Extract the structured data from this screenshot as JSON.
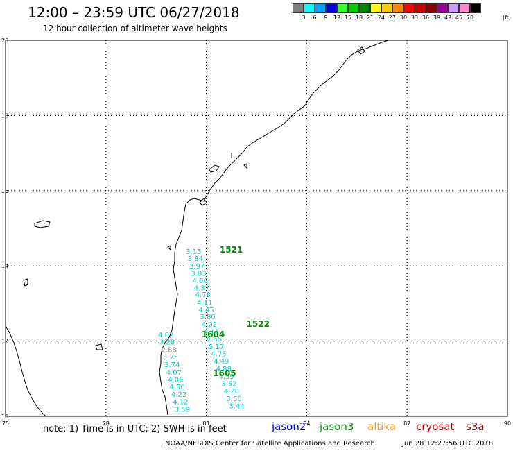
{
  "title": "12:00 – 23:59 UTC 06/27/2018",
  "subtitle": "12 hour collection of altimeter wave heights",
  "legend": {
    "unit": "(ft)",
    "colors": [
      {
        "label": "3",
        "color": "#7f7f7f"
      },
      {
        "label": "6",
        "color": "#00ffff"
      },
      {
        "label": "9",
        "color": "#00a0ff"
      },
      {
        "label": "12",
        "color": "#0000e0"
      },
      {
        "label": "15",
        "color": "#33ff33"
      },
      {
        "label": "18",
        "color": "#00cc00"
      },
      {
        "label": "21",
        "color": "#008800"
      },
      {
        "label": "24",
        "color": "#ffff00"
      },
      {
        "label": "27",
        "color": "#ffcc00"
      },
      {
        "label": "30",
        "color": "#ff8800"
      },
      {
        "label": "33",
        "color": "#ff0000"
      },
      {
        "label": "36",
        "color": "#cc0000"
      },
      {
        "label": "39",
        "color": "#880000"
      },
      {
        "label": "42",
        "color": "#990099"
      },
      {
        "label": "45",
        "color": "#cc99ff"
      },
      {
        "label": "70",
        "color": "#ff88cc"
      },
      {
        "label": "",
        "color": "#000000"
      }
    ]
  },
  "axes": {
    "lon_ticks": [
      "75",
      "78",
      "81",
      "84",
      "87",
      "90"
    ],
    "lat_ticks": [
      "10",
      "12",
      "14",
      "16",
      "18",
      "20"
    ]
  },
  "note": "note: 1) Time is in UTC; 2) SWH is in feet",
  "satellites": [
    {
      "name": "jason2",
      "color": "#0000cc"
    },
    {
      "name": "jason3",
      "color": "#009900"
    },
    {
      "name": "altika",
      "color": "#ff9900"
    },
    {
      "name": "cryosat",
      "color": "#cc0000"
    },
    {
      "name": "s3a",
      "color": "#880000"
    }
  ],
  "footer": {
    "credit": "NOAA/NESDIS Center for Satellite Applications and Research",
    "timestamp": "Jun 28 12:27:56 UTC 2018"
  },
  "track_times": [
    {
      "label": "1521",
      "lon": 81.4,
      "lat": 14.35
    },
    {
      "label": "1522",
      "lon": 82.2,
      "lat": 12.38
    },
    {
      "label": "1604",
      "lon": 80.86,
      "lat": 12.1
    },
    {
      "label": "1605",
      "lon": 81.2,
      "lat": 11.07
    }
  ],
  "wave_heights": [
    {
      "value": "3.15",
      "lon": 80.39,
      "lat": 14.32
    },
    {
      "value": "3.84",
      "lon": 80.44,
      "lat": 14.13
    },
    {
      "value": "3.97",
      "lon": 80.49,
      "lat": 13.93
    },
    {
      "value": "3.83",
      "lon": 80.54,
      "lat": 13.74
    },
    {
      "value": "4.06",
      "lon": 80.58,
      "lat": 13.54
    },
    {
      "value": "4.37",
      "lon": 80.63,
      "lat": 13.35
    },
    {
      "value": "4.78",
      "lon": 80.67,
      "lat": 13.17
    },
    {
      "value": "4.11",
      "lon": 80.72,
      "lat": 12.96
    },
    {
      "value": "4.45",
      "lon": 80.77,
      "lat": 12.77
    },
    {
      "value": "3.80",
      "lon": 80.81,
      "lat": 12.58
    },
    {
      "value": "4.02",
      "lon": 80.86,
      "lat": 12.38
    },
    {
      "value": "4.11",
      "lon": 80.92,
      "lat": 12.19
    },
    {
      "value": "4.66",
      "lon": 81.0,
      "lat": 11.99
    },
    {
      "value": "5.17",
      "lon": 81.07,
      "lat": 11.79
    },
    {
      "value": "4.75",
      "lon": 81.14,
      "lat": 11.6
    },
    {
      "value": "4.49",
      "lon": 81.22,
      "lat": 11.4
    },
    {
      "value": "4.88",
      "lon": 81.29,
      "lat": 11.2
    },
    {
      "value": "4.59",
      "lon": 81.37,
      "lat": 11.0
    },
    {
      "value": "3.52",
      "lon": 81.45,
      "lat": 10.8
    },
    {
      "value": "4.20",
      "lon": 81.52,
      "lat": 10.61
    },
    {
      "value": "3.50",
      "lon": 81.6,
      "lat": 10.41
    },
    {
      "value": "3.44",
      "lon": 81.68,
      "lat": 10.21
    },
    {
      "value": "4.02",
      "lon": 79.56,
      "lat": 12.1
    },
    {
      "value": "3.28",
      "lon": 79.6,
      "lat": 11.91
    },
    {
      "value": "2.88",
      "lon": 79.65,
      "lat": 11.71,
      "color": "#7f7f7f"
    },
    {
      "value": "3.25",
      "lon": 79.7,
      "lat": 11.51
    },
    {
      "value": "3.74",
      "lon": 79.75,
      "lat": 11.31
    },
    {
      "value": "4.07",
      "lon": 79.8,
      "lat": 11.11
    },
    {
      "value": "4.06",
      "lon": 79.85,
      "lat": 10.91
    },
    {
      "value": "4.50",
      "lon": 79.9,
      "lat": 10.72
    },
    {
      "value": "4.23",
      "lon": 79.95,
      "lat": 10.52
    },
    {
      "value": "4.12",
      "lon": 80.0,
      "lat": 10.32
    },
    {
      "value": "3.59",
      "lon": 80.05,
      "lat": 10.12
    }
  ]
}
